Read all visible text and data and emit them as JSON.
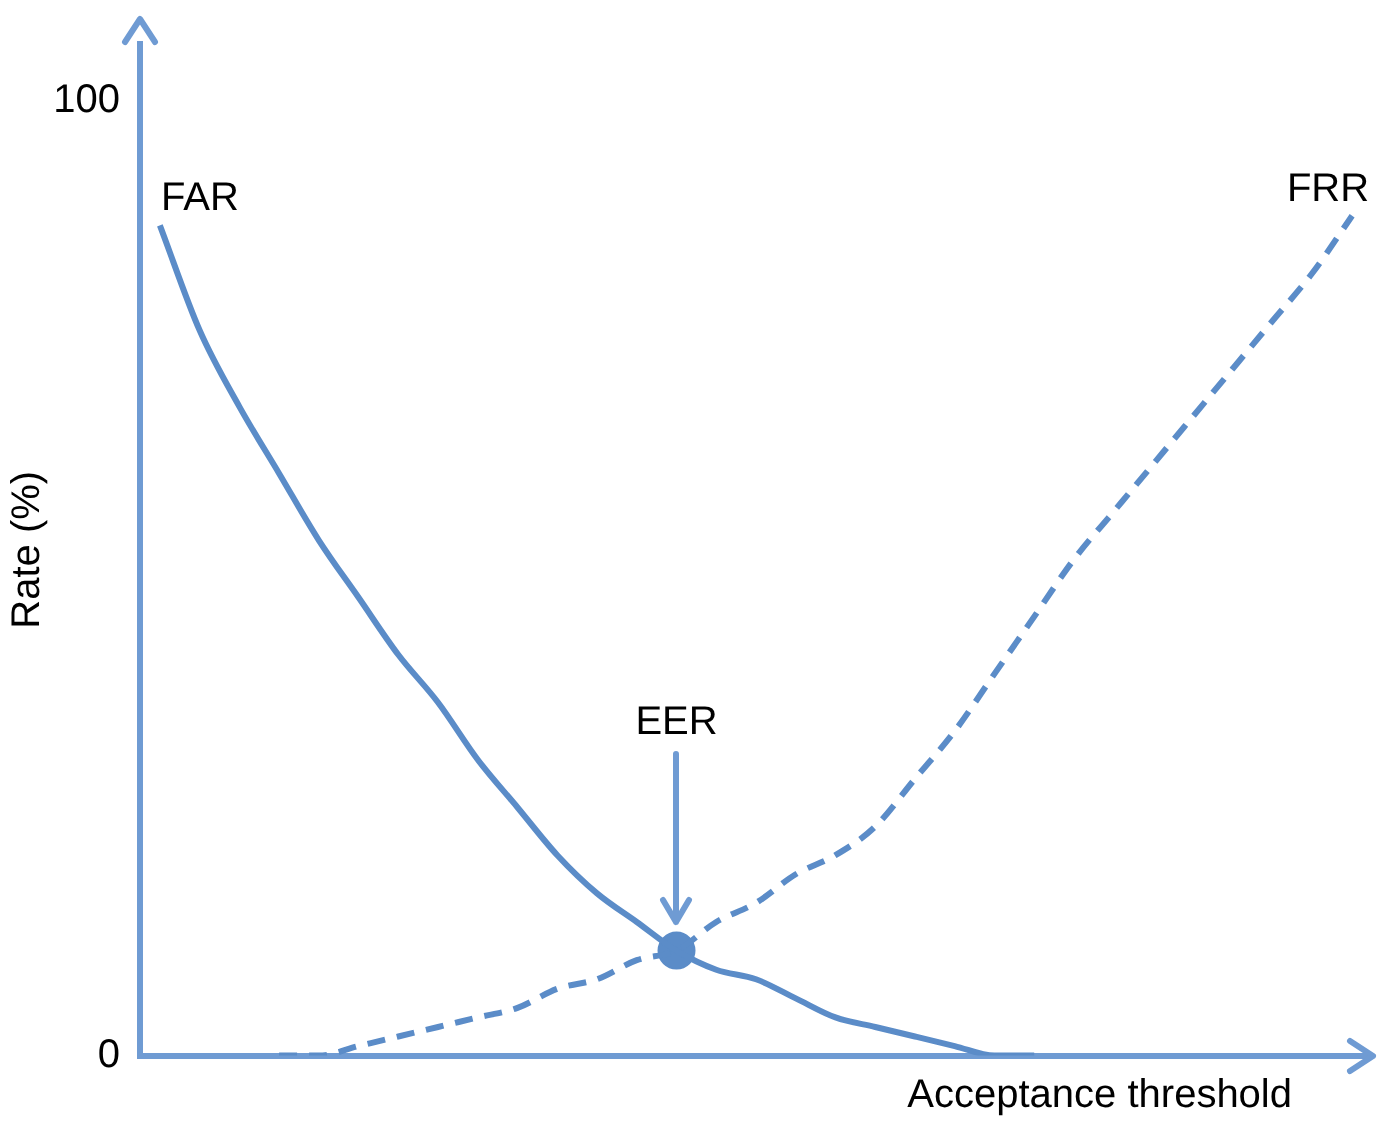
{
  "chart_data": {
    "type": "line",
    "xlabel": "Acceptance threshold",
    "ylabel": "Rate (%)",
    "categories": [
      null,
      null,
      null,
      null,
      null,
      null,
      null,
      null,
      null,
      null,
      null,
      null,
      null,
      null,
      null,
      null,
      null,
      null,
      null,
      null,
      null,
      null,
      null,
      null,
      null,
      null,
      null,
      null,
      null,
      null,
      null
    ],
    "series": [
      {
        "name": "FAR",
        "color": "#5b8cc8",
        "line_style": "solid",
        "values": [
          87,
          76,
          68,
          61,
          54,
          48,
          42,
          37,
          31,
          26,
          21,
          17,
          14,
          11,
          9,
          8,
          6,
          4,
          3,
          2,
          1,
          0,
          0,
          null,
          null,
          null,
          null,
          null,
          null,
          null,
          null
        ]
      },
      {
        "name": "FRR",
        "color": "#5b8cc8",
        "line_style": "dashed",
        "values": [
          null,
          null,
          null,
          0,
          0,
          1,
          2,
          3,
          4,
          5,
          7,
          8,
          10,
          11,
          14,
          16,
          19,
          21,
          24,
          29,
          34,
          40,
          46,
          52,
          57,
          62,
          67,
          72,
          77,
          82,
          88
        ]
      },
      {
        "type": "scatter",
        "color": "#5b8cc8",
        "marker": "circle",
        "values": [
          null,
          null,
          null,
          null,
          null,
          null,
          null,
          null,
          null,
          null,
          null,
          null,
          null,
          11,
          null,
          null,
          null,
          null,
          null,
          null,
          null,
          null,
          null,
          null,
          null,
          null,
          null,
          null,
          null,
          null,
          null
        ]
      }
    ],
    "annotations": [
      "EER"
    ],
    "ylim": [
      0,
      106
    ],
    "yticks": [
      0,
      100
    ],
    "marker": "none"
  }
}
